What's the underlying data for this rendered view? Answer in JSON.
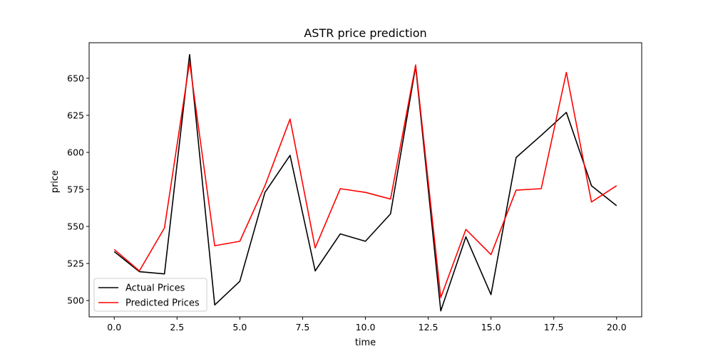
{
  "chart_data": {
    "type": "line",
    "title": "ASTR price prediction",
    "xlabel": "time",
    "ylabel": "price",
    "xlim": [
      -1,
      21
    ],
    "ylim": [
      489,
      674
    ],
    "xticks": [
      0,
      2.5,
      5,
      7.5,
      10,
      12.5,
      15,
      17.5,
      20
    ],
    "xtick_labels": [
      "0.0",
      "2.5",
      "5.0",
      "7.5",
      "10.0",
      "12.5",
      "15.0",
      "17.5",
      "20.0"
    ],
    "yticks": [
      500,
      525,
      550,
      575,
      600,
      625,
      650
    ],
    "ytick_labels": [
      "500",
      "525",
      "550",
      "575",
      "600",
      "625",
      "650"
    ],
    "grid": false,
    "legend_position": "lower-left",
    "x": [
      0,
      1,
      2,
      3,
      4,
      5,
      6,
      7,
      8,
      9,
      10,
      11,
      12,
      13,
      14,
      15,
      16,
      17,
      18,
      19,
      20
    ],
    "series": [
      {
        "name": "Actual Prices",
        "color": "#000000",
        "values": [
          533,
          519.5,
          518,
          666,
          497,
          513,
          573,
          598,
          520,
          545,
          540,
          558.5,
          658,
          493,
          543,
          504,
          596.5,
          611.5,
          627,
          577.5,
          564
        ]
      },
      {
        "name": "Predicted Prices",
        "color": "#ff0000",
        "values": [
          534.5,
          520,
          549,
          661,
          537,
          540,
          577.5,
          622.5,
          535.5,
          575.5,
          573,
          568.5,
          659,
          502,
          548,
          531,
          574.5,
          575.5,
          654,
          566.5,
          577.5
        ]
      }
    ]
  }
}
